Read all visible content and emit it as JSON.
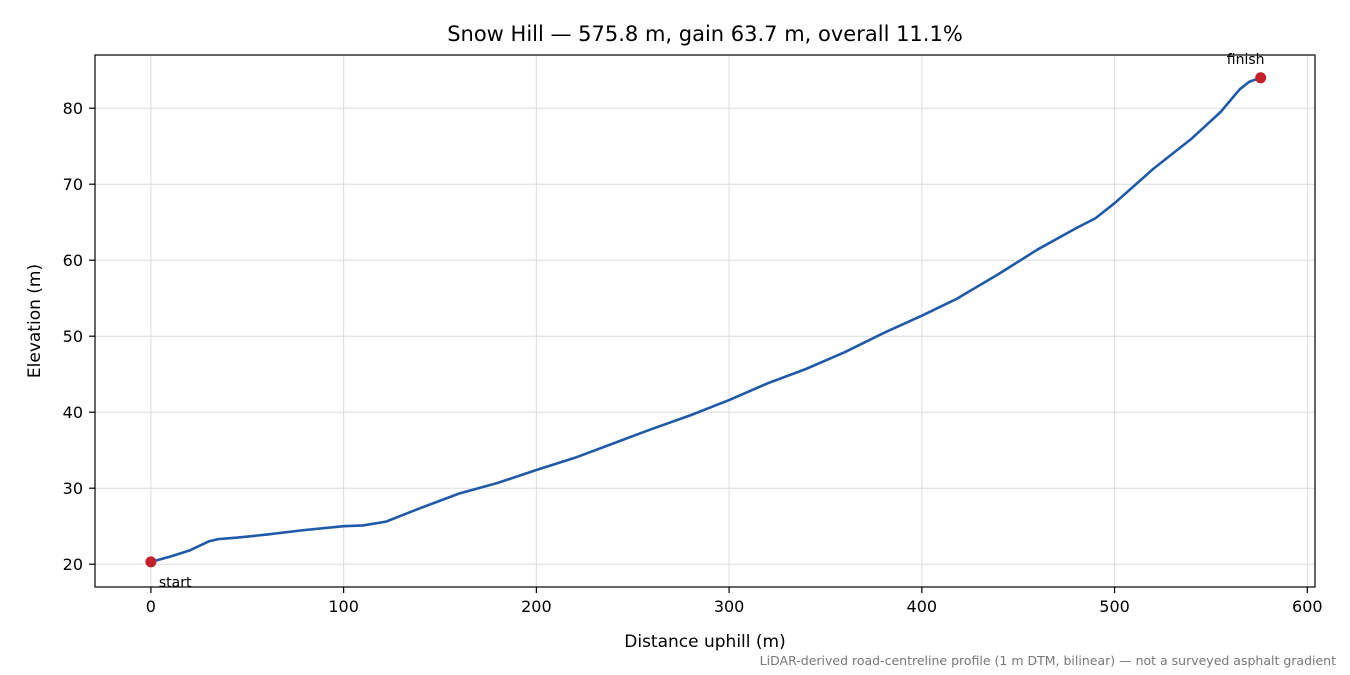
{
  "chart_data": {
    "type": "line",
    "title": "Snow Hill — 575.8 m, gain 63.7 m, overall 11.1%",
    "xlabel": "Distance uphill (m)",
    "ylabel": "Elevation (m)",
    "xlim": [
      -29,
      604
    ],
    "ylim": [
      17,
      87
    ],
    "xticks": [
      0,
      100,
      200,
      300,
      400,
      500,
      600
    ],
    "yticks": [
      20,
      30,
      40,
      50,
      60,
      70,
      80
    ],
    "grid": true,
    "line_color": "#1f5aa8",
    "marker_color": "#c4202a",
    "x": [
      0,
      10,
      20,
      30,
      35,
      45,
      60,
      80,
      100,
      110,
      122,
      140,
      160,
      180,
      200,
      220,
      240,
      260,
      280,
      300,
      320,
      340,
      360,
      380,
      400,
      418,
      420,
      440,
      460,
      480,
      490,
      500,
      520,
      540,
      555,
      565,
      570,
      575.8
    ],
    "y": [
      20.3,
      21.0,
      21.8,
      23.0,
      23.3,
      23.5,
      23.9,
      24.5,
      25.0,
      25.1,
      25.6,
      27.4,
      29.3,
      30.7,
      32.4,
      34.0,
      35.9,
      37.8,
      39.6,
      41.6,
      43.8,
      45.7,
      47.9,
      50.4,
      52.7,
      54.9,
      55.2,
      58.2,
      61.4,
      64.2,
      65.5,
      67.5,
      72.0,
      76.0,
      79.5,
      82.5,
      83.5,
      84.0
    ],
    "annotations": [
      {
        "text": "start",
        "x": 0,
        "y": 20.3
      },
      {
        "text": "finish",
        "x": 575.8,
        "y": 84.0
      }
    ],
    "footnote": "LiDAR-derived road-centreline profile (1 m DTM, bilinear) — not a surveyed asphalt gradient"
  }
}
